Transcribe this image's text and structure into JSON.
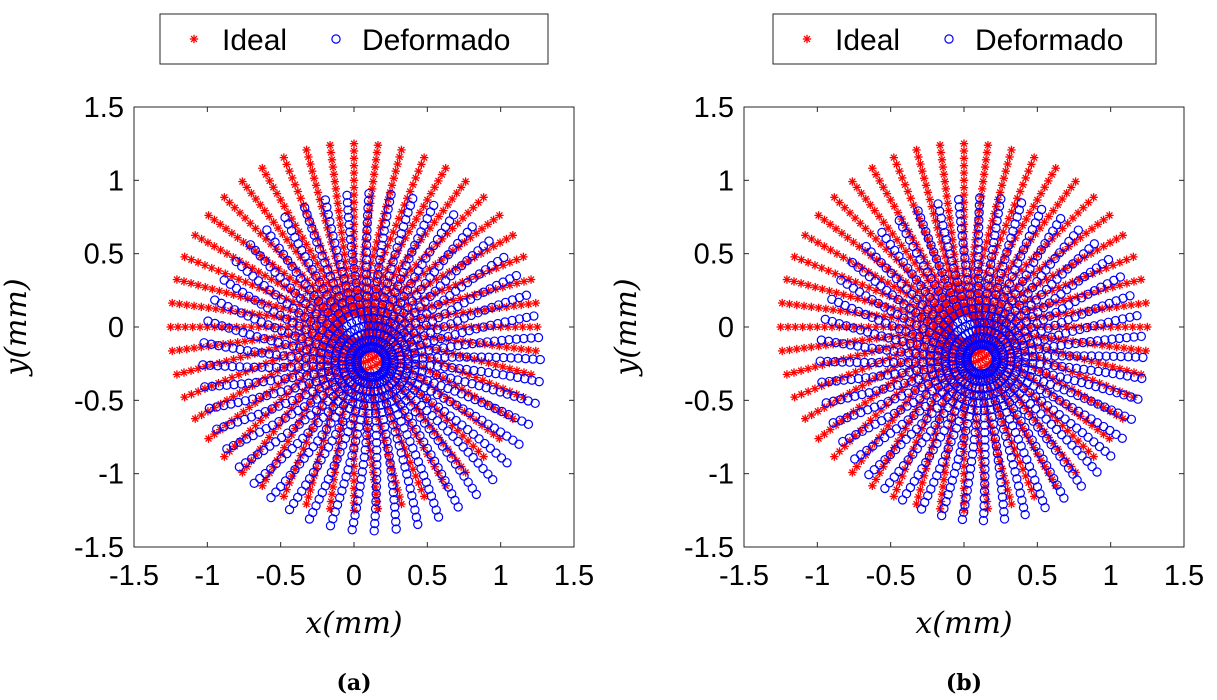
{
  "chart_data": [
    {
      "type": "scatter",
      "panel": "a",
      "caption": "(a)",
      "xlabel": "x(mm)",
      "ylabel": "y(mm)",
      "xlim": [
        -1.5,
        1.5
      ],
      "ylim": [
        -1.5,
        1.5
      ],
      "xticks": [
        "-1.5",
        "-1",
        "-0.5",
        "0",
        "0.5",
        "1",
        "1.5"
      ],
      "yticks": [
        "1.5",
        "1",
        "0.5",
        "0",
        "-0.5",
        "-1",
        "-1.5"
      ],
      "grid": false,
      "legend": {
        "placement": "top-center",
        "entries": [
          "Ideal",
          "Deformado"
        ]
      },
      "series": [
        {
          "name": "Ideal",
          "marker": "asterisk",
          "color": "#ff0000",
          "pattern": "polar-grid",
          "center": [
            0,
            0
          ],
          "r_min": 0.1,
          "r_max": 1.25,
          "r_step": 0.05,
          "angular_count": 48
        },
        {
          "name": "Deformado",
          "marker": "circle",
          "color": "#0000ff",
          "pattern": "polar-grid-displaced",
          "center": [
            0.12,
            -0.24
          ],
          "r_min": 0.1,
          "r_max": 1.15,
          "r_step": 0.05,
          "angular_count": 48,
          "displacement": {
            "shift_x": 0.12,
            "shift_y": -0.24,
            "swirl_deg": 6
          }
        }
      ]
    },
    {
      "type": "scatter",
      "panel": "b",
      "caption": "(b)",
      "xlabel": "x(mm)",
      "ylabel": "y(mm)",
      "xlim": [
        -1.5,
        1.5
      ],
      "ylim": [
        -1.5,
        1.5
      ],
      "xticks": [
        "-1.5",
        "-1",
        "-0.5",
        "0",
        "0.5",
        "1",
        "1.5"
      ],
      "yticks": [
        "1.5",
        "1",
        "0.5",
        "0",
        "-0.5",
        "-1",
        "-1.5"
      ],
      "grid": false,
      "legend": {
        "placement": "top-center",
        "entries": [
          "Ideal",
          "Deformado"
        ]
      },
      "series": [
        {
          "name": "Ideal",
          "marker": "asterisk",
          "color": "#ff0000",
          "pattern": "polar-grid",
          "center": [
            0,
            0
          ],
          "r_min": 0.1,
          "r_max": 1.25,
          "r_step": 0.05,
          "angular_count": 48
        },
        {
          "name": "Deformado",
          "marker": "circle",
          "color": "#0000ff",
          "pattern": "polar-grid-displaced",
          "center": [
            0.12,
            -0.22
          ],
          "r_min": 0.1,
          "r_max": 1.12,
          "r_step": 0.05,
          "angular_count": 48,
          "displacement": {
            "shift_x": 0.12,
            "shift_y": -0.22,
            "swirl_deg": 4
          }
        }
      ]
    }
  ]
}
